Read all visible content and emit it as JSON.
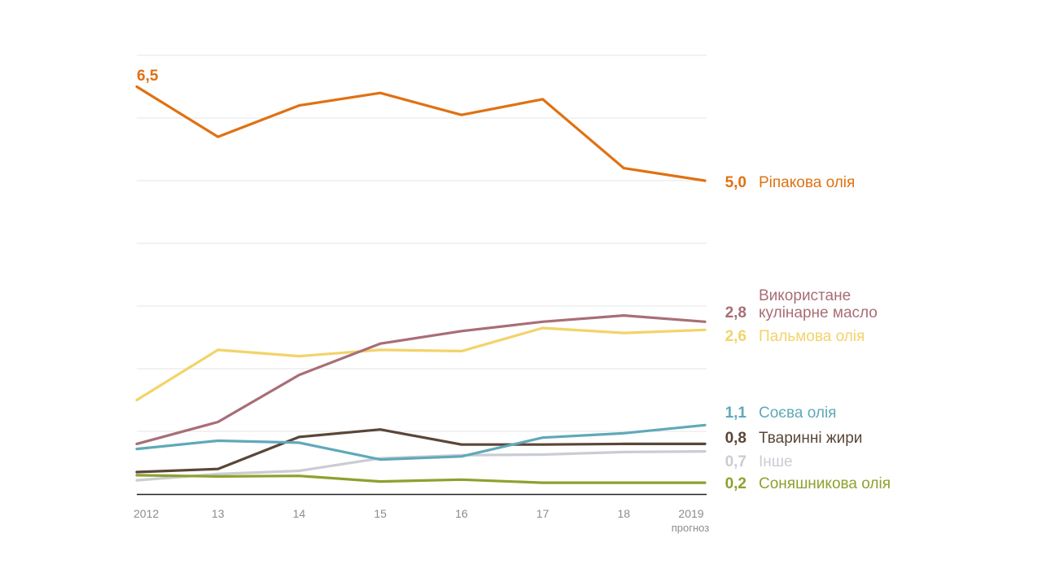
{
  "chart_data": {
    "type": "line",
    "title": "",
    "xlabel": "",
    "ylabel": "",
    "x": [
      "2012",
      "13",
      "14",
      "15",
      "16",
      "17",
      "18",
      "2019"
    ],
    "x_note": "прогноз",
    "ylim": [
      0,
      7
    ],
    "grid": true,
    "start_label": "6,5",
    "series": [
      {
        "id": "rapeseed",
        "name": "Ріпакова олія",
        "value_label": "5,0",
        "color": "#e07112",
        "values": [
          6.5,
          5.7,
          6.2,
          6.4,
          6.05,
          6.3,
          5.2,
          5.0
        ]
      },
      {
        "id": "used_cooking",
        "name": "Використане кулінарне масло",
        "name_line1": "Використане",
        "name_line2": "кулінарне масло",
        "value_label": "2,8",
        "color": "#a86e76",
        "values": [
          0.8,
          1.15,
          1.9,
          2.4,
          2.6,
          2.75,
          2.85,
          2.75
        ]
      },
      {
        "id": "palm",
        "name": "Пальмова олія",
        "value_label": "2,6",
        "color": "#f3d36a",
        "values": [
          1.5,
          2.3,
          2.2,
          2.3,
          2.28,
          2.65,
          2.57,
          2.62
        ]
      },
      {
        "id": "soy",
        "name": "Соєва олія",
        "value_label": "1,1",
        "color": "#5fa9b9",
        "values": [
          0.72,
          0.85,
          0.82,
          0.55,
          0.6,
          0.9,
          0.97,
          1.1
        ]
      },
      {
        "id": "animal",
        "name": "Тваринні жири",
        "value_label": "0,8",
        "color": "#5a4638",
        "values": [
          0.35,
          0.4,
          0.91,
          1.03,
          0.79,
          0.79,
          0.8,
          0.8
        ]
      },
      {
        "id": "other",
        "name": "Інше",
        "value_label": "0,7",
        "color": "#c9cdd3",
        "values": [
          0.22,
          0.32,
          0.37,
          0.57,
          0.62,
          0.63,
          0.67,
          0.68
        ]
      },
      {
        "id": "sunflower",
        "name": "Соняшникова олія",
        "value_label": "0,2",
        "color": "#8ea12e",
        "values": [
          0.3,
          0.28,
          0.29,
          0.2,
          0.23,
          0.18,
          0.18,
          0.18
        ]
      }
    ]
  }
}
